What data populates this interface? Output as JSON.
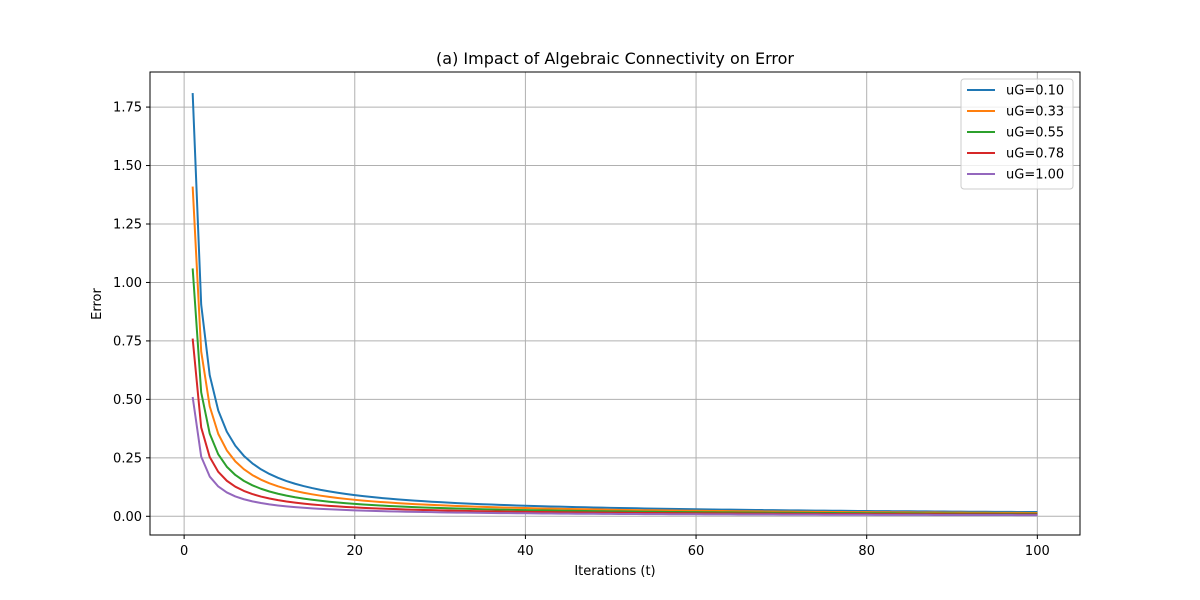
{
  "chart_data": {
    "type": "line",
    "title": "(a) Impact of Algebraic Connectivity on Error",
    "xlabel": "Iterations (t)",
    "ylabel": "Error",
    "xlim": [
      -4,
      105
    ],
    "ylim": [
      -0.08,
      1.9
    ],
    "xticks": [
      0,
      20,
      40,
      60,
      80,
      100
    ],
    "xtick_labels": [
      "0",
      "20",
      "40",
      "60",
      "80",
      "100"
    ],
    "yticks": [
      0,
      0.25,
      0.5,
      0.75,
      1.0,
      1.25,
      1.5,
      1.75
    ],
    "ytick_labels": [
      "0.00",
      "0.25",
      "0.50",
      "0.75",
      "1.00",
      "1.25",
      "1.50",
      "1.75"
    ],
    "grid": true,
    "legend_position": "top-right",
    "x_range": [
      1,
      100
    ],
    "model": "error = a / t",
    "series": [
      {
        "name": "uG=0.10",
        "color": "#1f77b4",
        "a": 1.81
      },
      {
        "name": "uG=0.33",
        "color": "#ff7f0e",
        "a": 1.41
      },
      {
        "name": "uG=0.55",
        "color": "#2ca02c",
        "a": 1.06
      },
      {
        "name": "uG=0.78",
        "color": "#d62728",
        "a": 0.76
      },
      {
        "name": "uG=1.00",
        "color": "#9467bd",
        "a": 0.51
      }
    ]
  }
}
